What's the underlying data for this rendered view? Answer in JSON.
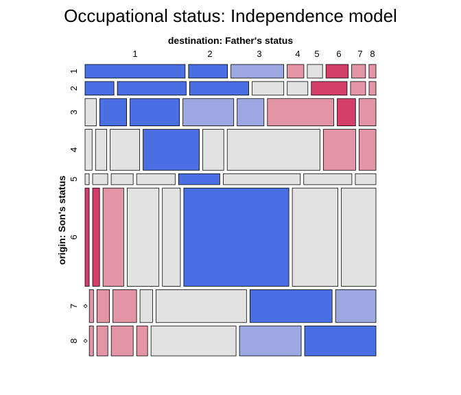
{
  "chart_data": {
    "type": "mosaic",
    "title": "Occupational status: Independence model",
    "xlabel": "destination: Father's status",
    "ylabel": "origin: Son's status",
    "x_categories": [
      "1",
      "2",
      "3",
      "4",
      "5",
      "6",
      "7",
      "8"
    ],
    "y_categories": [
      "1",
      "2",
      "3",
      "4",
      "5",
      "6",
      "7",
      "8"
    ],
    "shading_colors": {
      "strong_positive": "#4a6fe3",
      "moderate_positive": "#9da8e2",
      "neutral": "#e2e2e2",
      "moderate_negative": "#e495a5",
      "strong_negative": "#d33f6a"
    },
    "rows": [
      {
        "origin": "1",
        "share": 0.05,
        "cells": [
          {
            "share": 0.36,
            "shade": "strong_positive"
          },
          {
            "share": 0.14,
            "shade": "strong_positive"
          },
          {
            "share": 0.19,
            "shade": "moderate_positive"
          },
          {
            "share": 0.06,
            "shade": "moderate_negative"
          },
          {
            "share": 0.055,
            "shade": "neutral"
          },
          {
            "share": 0.08,
            "shade": "strong_negative"
          },
          {
            "share": 0.05,
            "shade": "moderate_negative"
          },
          {
            "share": 0.025,
            "shade": "moderate_negative"
          }
        ]
      },
      {
        "origin": "2",
        "share": 0.05,
        "cells": [
          {
            "share": 0.105,
            "shade": "strong_positive"
          },
          {
            "share": 0.25,
            "shade": "strong_positive"
          },
          {
            "share": 0.215,
            "shade": "strong_positive"
          },
          {
            "share": 0.115,
            "shade": "neutral"
          },
          {
            "share": 0.075,
            "shade": "neutral"
          },
          {
            "share": 0.13,
            "shade": "strong_negative"
          },
          {
            "share": 0.055,
            "shade": "moderate_negative"
          },
          {
            "share": 0.025,
            "shade": "moderate_negative"
          }
        ]
      },
      {
        "origin": "3",
        "share": 0.1,
        "cells": [
          {
            "share": 0.04,
            "shade": "neutral"
          },
          {
            "share": 0.095,
            "shade": "strong_positive"
          },
          {
            "share": 0.175,
            "shade": "strong_positive"
          },
          {
            "share": 0.18,
            "shade": "moderate_positive"
          },
          {
            "share": 0.095,
            "shade": "moderate_positive"
          },
          {
            "share": 0.235,
            "shade": "moderate_negative"
          },
          {
            "share": 0.065,
            "shade": "strong_negative"
          },
          {
            "share": 0.06,
            "shade": "moderate_negative"
          }
        ]
      },
      {
        "origin": "4",
        "share": 0.15,
        "cells": [
          {
            "share": 0.025,
            "shade": "neutral"
          },
          {
            "share": 0.04,
            "shade": "neutral"
          },
          {
            "share": 0.105,
            "shade": "neutral"
          },
          {
            "share": 0.2,
            "shade": "strong_positive"
          },
          {
            "share": 0.075,
            "shade": "neutral"
          },
          {
            "share": 0.33,
            "shade": "neutral"
          },
          {
            "share": 0.115,
            "shade": "moderate_negative"
          },
          {
            "share": 0.06,
            "shade": "moderate_negative"
          }
        ]
      },
      {
        "origin": "5",
        "share": 0.04,
        "cells": [
          {
            "share": 0.015,
            "shade": "neutral"
          },
          {
            "share": 0.055,
            "shade": "neutral"
          },
          {
            "share": 0.08,
            "shade": "neutral"
          },
          {
            "share": 0.14,
            "shade": "neutral"
          },
          {
            "share": 0.15,
            "shade": "strong_positive"
          },
          {
            "share": 0.28,
            "shade": "neutral"
          },
          {
            "share": 0.175,
            "shade": "neutral"
          },
          {
            "share": 0.075,
            "shade": "neutral"
          }
        ]
      },
      {
        "origin": "6",
        "share": 0.36,
        "cells": [
          {
            "share": 0.015,
            "shade": "strong_negative"
          },
          {
            "share": 0.025,
            "shade": "strong_negative"
          },
          {
            "share": 0.075,
            "shade": "moderate_negative"
          },
          {
            "share": 0.115,
            "shade": "neutral"
          },
          {
            "share": 0.065,
            "shade": "neutral"
          },
          {
            "share": 0.38,
            "shade": "strong_positive"
          },
          {
            "share": 0.165,
            "shade": "neutral"
          },
          {
            "share": 0.125,
            "shade": "neutral"
          }
        ]
      },
      {
        "origin": "7",
        "share": 0.12,
        "cells": [
          {
            "share": 0.003,
            "shade": "strong_negative"
          },
          {
            "share": 0.015,
            "shade": "moderate_negative"
          },
          {
            "share": 0.045,
            "shade": "moderate_negative"
          },
          {
            "share": 0.085,
            "shade": "moderate_negative"
          },
          {
            "share": 0.045,
            "shade": "neutral"
          },
          {
            "share": 0.325,
            "shade": "neutral"
          },
          {
            "share": 0.295,
            "shade": "strong_positive"
          },
          {
            "share": 0.145,
            "shade": "moderate_positive"
          }
        ]
      },
      {
        "origin": "8",
        "share": 0.11,
        "cells": [
          {
            "share": 0.003,
            "shade": "strong_negative"
          },
          {
            "share": 0.015,
            "shade": "moderate_negative"
          },
          {
            "share": 0.04,
            "shade": "moderate_negative"
          },
          {
            "share": 0.08,
            "shade": "moderate_negative"
          },
          {
            "share": 0.04,
            "shade": "moderate_negative"
          },
          {
            "share": 0.31,
            "shade": "neutral"
          },
          {
            "share": 0.225,
            "shade": "moderate_positive"
          },
          {
            "share": 0.26,
            "shade": "strong_positive"
          }
        ]
      }
    ],
    "legend": "none",
    "grid": false
  }
}
